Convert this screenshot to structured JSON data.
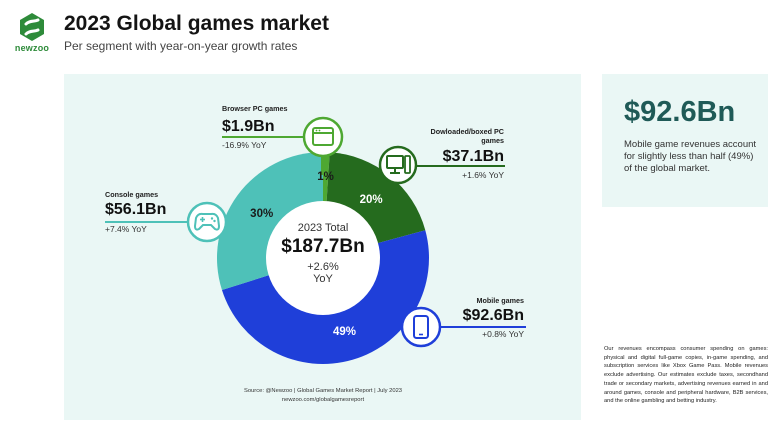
{
  "brand": {
    "name": "newzoo",
    "icon": "newzoo-logo-icon",
    "color": "#2e8b3a"
  },
  "header": {
    "title": "2023 Global games market",
    "subtitle": "Per segment with year-on-year growth rates"
  },
  "side_panel": {
    "headline": "$92.6Bn",
    "text": "Mobile game revenues account for slightly less than half (49%) of the global market."
  },
  "center": {
    "title": "2023 Total",
    "value": "$187.7Bn",
    "growth": "+2.6%",
    "growth_unit": "YoY"
  },
  "segments": [
    {
      "name": "Browser PC games",
      "value": "$1.9Bn",
      "growth": "-16.9% YoY",
      "percent_label": "1%",
      "icon": "browser-window-icon",
      "color": "#4ea832"
    },
    {
      "name": "Dowloaded/boxed PC games",
      "value": "$37.1Bn",
      "growth": "+1.6% YoY",
      "percent_label": "20%",
      "icon": "desktop-pc-icon",
      "color": "#256b1e"
    },
    {
      "name": "Mobile games",
      "value": "$92.6Bn",
      "growth": "+0.8% YoY",
      "percent_label": "49%",
      "icon": "smartphone-icon",
      "color": "#1f3fd9"
    },
    {
      "name": "Console games",
      "value": "$56.1Bn",
      "growth": "+7.4% YoY",
      "percent_label": "30%",
      "icon": "gamepad-icon",
      "color": "#4ec1b8"
    }
  ],
  "source": {
    "line1": "Source: @Newzoo | Global Games Market Report | July 2023",
    "line2": "newzoo.com/globalgamesreport"
  },
  "footnote": "Our revenues encompass consumer spending on games: physical and digital full-game copies, in-game spending, and subscription services like Xbox Game Pass. Mobile revenues exclude advertising. Our estimates exclude taxes, secondhand trade or secondary markets, advertising revenues earned in and around games, console and peripheral hardware, B2B services, and the online gambling and betting industry.",
  "chart_data": {
    "type": "pie",
    "variant": "donut",
    "title": "2023 Global games market",
    "subtitle": "Per segment with year-on-year growth rates",
    "unit": "USD billions",
    "total": 187.7,
    "total_growth_pct": 2.6,
    "categories": [
      "Browser PC games",
      "Dowloaded/boxed PC games",
      "Mobile games",
      "Console games"
    ],
    "values": [
      1.9,
      37.1,
      92.6,
      56.1
    ],
    "percent": [
      1,
      20,
      49,
      30
    ],
    "growth_pct": [
      -16.9,
      1.6,
      0.8,
      7.4
    ],
    "colors": [
      "#4ea832",
      "#256b1e",
      "#1f3fd9",
      "#4ec1b8"
    ]
  }
}
